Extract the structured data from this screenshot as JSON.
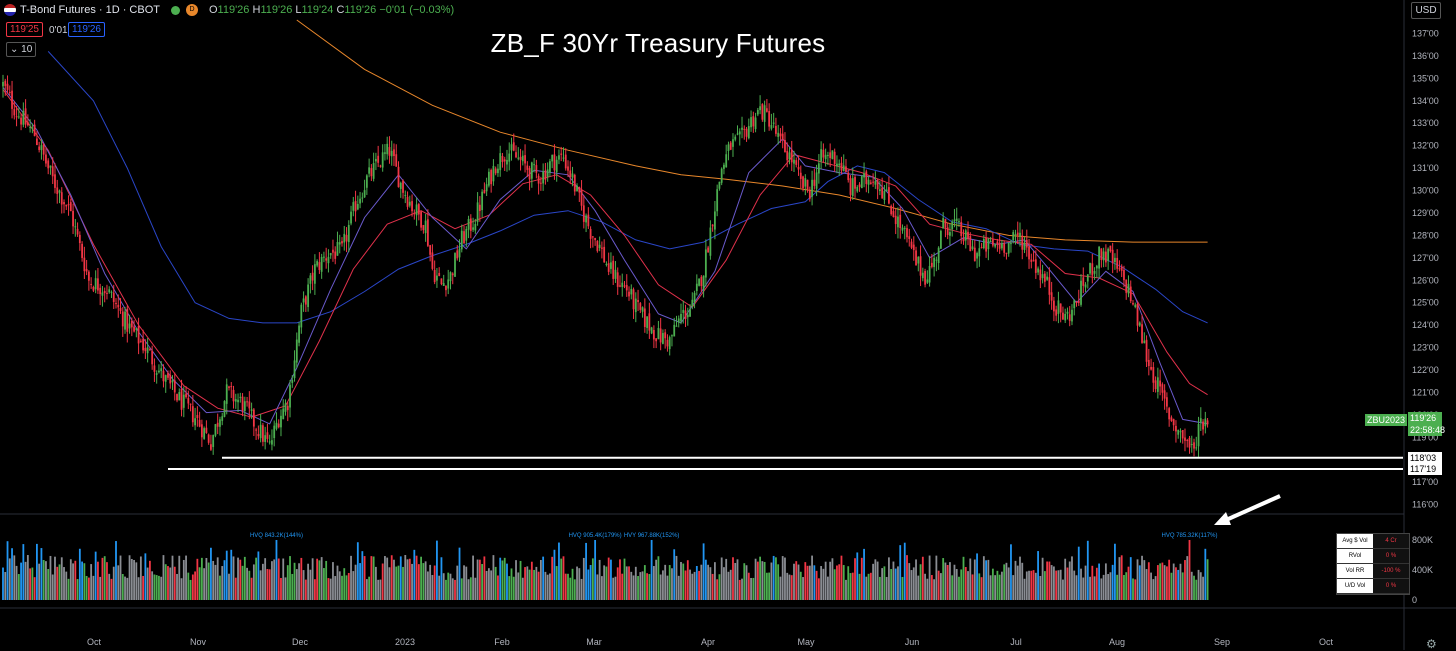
{
  "header": {
    "symbol": "T-Bond Futures · 1D · CBOT",
    "o": "119'26",
    "h": "119'26",
    "l": "119'24",
    "c": "119'26",
    "change": "−0'01 (−0.03%)",
    "bid": "119'25",
    "spread": "0'01",
    "ask": "119'26",
    "indicator_len": "10",
    "currency": "USD",
    "o_label": "O",
    "h_label": "H",
    "l_label": "L",
    "c_label": "C"
  },
  "colors": {
    "up": "#4caf50",
    "down": "#f23645",
    "vol_blue": "#2196f3",
    "vol_gray": "#8a8d93",
    "ma_fast": "#6a5acd",
    "ma_mid": "#e0314b",
    "ma_slow": "#2a46c8",
    "ma_long": "#e8872b"
  },
  "chart_data": {
    "type": "candlestick",
    "title": "ZB_F 30Yr Treasury Futures",
    "symbol_tag": "ZBU2023",
    "last_price_label": "119'26",
    "countdown": "22:58:48",
    "ylim": [
      115.85,
      137.2
    ],
    "y_ticks": [
      "137'00",
      "136'00",
      "135'00",
      "134'00",
      "133'00",
      "132'00",
      "131'00",
      "130'00",
      "129'00",
      "128'00",
      "127'00",
      "126'00",
      "125'00",
      "124'00",
      "123'00",
      "122'00",
      "121'00",
      "120'00",
      "119'00",
      "118'00",
      "117'00",
      "116'00"
    ],
    "x_ticks": [
      "Oct",
      "Nov",
      "Dec",
      "2023",
      "Feb",
      "Mar",
      "Apr",
      "May",
      "Jun",
      "Jul",
      "Aug",
      "Sep",
      "Oct"
    ],
    "support_lines": [
      {
        "value": 118.09,
        "label": "118'03"
      },
      {
        "value": 117.59,
        "label": "117'19"
      }
    ],
    "path": [
      [
        0,
        134.7
      ],
      [
        6,
        133.5
      ],
      [
        14,
        132.5
      ],
      [
        22,
        130.5
      ],
      [
        30,
        129
      ],
      [
        38,
        126
      ],
      [
        46,
        125.6
      ],
      [
        55,
        124
      ],
      [
        63,
        123
      ],
      [
        70,
        121.8
      ],
      [
        78,
        120.7
      ],
      [
        85,
        119.9
      ],
      [
        92,
        118.8
      ],
      [
        99,
        121
      ],
      [
        106,
        120.5
      ],
      [
        112,
        119.5
      ],
      [
        118,
        118.6
      ],
      [
        122,
        119.9
      ],
      [
        126,
        120.6
      ],
      [
        132,
        124.6
      ],
      [
        138,
        126.5
      ],
      [
        144,
        127.2
      ],
      [
        150,
        127.3
      ],
      [
        156,
        129.4
      ],
      [
        161,
        130.5
      ],
      [
        166,
        131.2
      ],
      [
        171,
        131.8
      ],
      [
        176,
        130.3
      ],
      [
        181,
        129.3
      ],
      [
        187,
        128.5
      ],
      [
        190,
        126.5
      ],
      [
        194,
        125.8
      ],
      [
        198,
        126.2
      ],
      [
        203,
        127.8
      ],
      [
        209,
        128.8
      ],
      [
        214,
        130.2
      ],
      [
        218,
        131.2
      ],
      [
        223,
        131.8
      ],
      [
        228,
        131.4
      ],
      [
        233,
        130.9
      ],
      [
        238,
        130.6
      ],
      [
        243,
        131.3
      ],
      [
        248,
        131.5
      ],
      [
        252,
        130.5
      ],
      [
        256,
        129.2
      ],
      [
        260,
        128.2
      ],
      [
        264,
        127.5
      ],
      [
        268,
        126.5
      ],
      [
        272,
        126
      ],
      [
        276,
        125.6
      ],
      [
        280,
        124.8
      ],
      [
        285,
        124.1
      ],
      [
        290,
        123.5
      ],
      [
        295,
        123.3
      ],
      [
        300,
        124.4
      ],
      [
        305,
        124.8
      ],
      [
        310,
        126.5
      ],
      [
        314,
        128.8
      ],
      [
        318,
        131
      ],
      [
        322,
        132
      ],
      [
        326,
        132.2
      ],
      [
        331,
        133.1
      ],
      [
        335,
        133.6
      ],
      [
        339,
        133.2
      ],
      [
        344,
        132.1
      ],
      [
        349,
        131.4
      ],
      [
        353,
        130.3
      ],
      [
        357,
        130
      ],
      [
        362,
        131.4
      ],
      [
        367,
        131.6
      ],
      [
        371,
        131.1
      ],
      [
        375,
        130.1
      ],
      [
        380,
        130.3
      ],
      [
        385,
        130.7
      ],
      [
        390,
        129.9
      ],
      [
        395,
        128.8
      ],
      [
        400,
        127.8
      ],
      [
        404,
        126.8
      ],
      [
        408,
        126.2
      ],
      [
        412,
        126.8
      ],
      [
        416,
        128.4
      ],
      [
        421,
        128.5
      ],
      [
        426,
        127.8
      ],
      [
        430,
        127.2
      ],
      [
        435,
        127.5
      ],
      [
        440,
        127.6
      ],
      [
        445,
        127.6
      ],
      [
        450,
        128
      ],
      [
        454,
        127.2
      ],
      [
        458,
        126.5
      ],
      [
        462,
        125.8
      ],
      [
        466,
        124.8
      ],
      [
        470,
        124.3
      ],
      [
        474,
        124.8
      ],
      [
        478,
        125.8
      ],
      [
        482,
        126.6
      ],
      [
        486,
        127.2
      ],
      [
        490,
        127
      ],
      [
        494,
        126.3
      ],
      [
        498,
        125.6
      ],
      [
        502,
        124.2
      ],
      [
        507,
        122.3
      ],
      [
        512,
        121
      ],
      [
        516,
        120
      ],
      [
        520,
        119.3
      ],
      [
        524,
        118.8
      ],
      [
        527,
        118.3
      ],
      [
        529,
        119.6
      ],
      [
        533,
        119.9
      ]
    ],
    "ma_fast": [
      [
        0,
        134.6
      ],
      [
        15,
        132.7
      ],
      [
        30,
        129.8
      ],
      [
        45,
        126.3
      ],
      [
        60,
        123.7
      ],
      [
        75,
        121.6
      ],
      [
        90,
        120.1
      ],
      [
        105,
        120.2
      ],
      [
        118,
        119.6
      ],
      [
        130,
        122.1
      ],
      [
        145,
        125.6
      ],
      [
        160,
        128.8
      ],
      [
        175,
        130.7
      ],
      [
        190,
        128.8
      ],
      [
        205,
        127.4
      ],
      [
        220,
        129.6
      ],
      [
        235,
        130.9
      ],
      [
        250,
        130.7
      ],
      [
        262,
        129.1
      ],
      [
        275,
        126.9
      ],
      [
        290,
        124.5
      ],
      [
        300,
        124.1
      ],
      [
        315,
        126.4
      ],
      [
        330,
        130.8
      ],
      [
        345,
        132.3
      ],
      [
        355,
        131.1
      ],
      [
        370,
        130.8
      ],
      [
        385,
        130.6
      ],
      [
        398,
        129.2
      ],
      [
        410,
        127
      ],
      [
        425,
        127.9
      ],
      [
        440,
        127.6
      ],
      [
        452,
        127.8
      ],
      [
        462,
        126.6
      ],
      [
        475,
        125
      ],
      [
        488,
        126.4
      ],
      [
        500,
        125.5
      ],
      [
        512,
        122.3
      ],
      [
        522,
        119.8
      ],
      [
        533,
        119.6
      ]
    ],
    "ma_mid": [
      [
        0,
        134.5
      ],
      [
        20,
        131.8
      ],
      [
        40,
        127.6
      ],
      [
        60,
        124
      ],
      [
        80,
        121.3
      ],
      [
        95,
        120.3
      ],
      [
        110,
        119.9
      ],
      [
        125,
        120.4
      ],
      [
        140,
        123.3
      ],
      [
        155,
        126.5
      ],
      [
        170,
        128.5
      ],
      [
        185,
        129.1
      ],
      [
        200,
        128.3
      ],
      [
        215,
        128.9
      ],
      [
        230,
        130.3
      ],
      [
        245,
        130.7
      ],
      [
        260,
        129.8
      ],
      [
        275,
        128
      ],
      [
        290,
        125.8
      ],
      [
        305,
        124.8
      ],
      [
        320,
        126.9
      ],
      [
        335,
        129.8
      ],
      [
        350,
        131.6
      ],
      [
        365,
        131.2
      ],
      [
        380,
        130.8
      ],
      [
        395,
        130.2
      ],
      [
        410,
        128.5
      ],
      [
        425,
        128.1
      ],
      [
        440,
        127.8
      ],
      [
        455,
        127.6
      ],
      [
        470,
        126.3
      ],
      [
        485,
        126.1
      ],
      [
        500,
        125.4
      ],
      [
        515,
        122.8
      ],
      [
        525,
        121.4
      ],
      [
        533,
        120.9
      ]
    ],
    "ma_slow": [
      [
        20,
        136.2
      ],
      [
        40,
        134
      ],
      [
        55,
        131
      ],
      [
        70,
        127.5
      ],
      [
        85,
        125
      ],
      [
        100,
        124.3
      ],
      [
        115,
        124.1
      ],
      [
        130,
        124.1
      ],
      [
        145,
        124.6
      ],
      [
        160,
        125.5
      ],
      [
        175,
        126.5
      ],
      [
        190,
        127.1
      ],
      [
        205,
        127.6
      ],
      [
        220,
        128.2
      ],
      [
        235,
        128.9
      ],
      [
        250,
        129.1
      ],
      [
        265,
        128.6
      ],
      [
        280,
        127.8
      ],
      [
        295,
        127.4
      ],
      [
        310,
        127.7
      ],
      [
        325,
        128.5
      ],
      [
        340,
        129.2
      ],
      [
        355,
        129.5
      ],
      [
        365,
        130.4
      ],
      [
        378,
        131.1
      ],
      [
        390,
        130.8
      ],
      [
        405,
        129.6
      ],
      [
        420,
        128.6
      ],
      [
        435,
        128.3
      ],
      [
        450,
        127.6
      ],
      [
        465,
        127.4
      ],
      [
        480,
        127.3
      ],
      [
        495,
        126.6
      ],
      [
        510,
        125.6
      ],
      [
        522,
        124.6
      ],
      [
        533,
        124.1
      ]
    ],
    "ma_long": [
      [
        130,
        137.6
      ],
      [
        160,
        135.4
      ],
      [
        190,
        133.8
      ],
      [
        220,
        132.6
      ],
      [
        250,
        131.8
      ],
      [
        280,
        131.1
      ],
      [
        300,
        130.7
      ],
      [
        320,
        130.5
      ],
      [
        345,
        130.2
      ],
      [
        370,
        129.8
      ],
      [
        395,
        129.2
      ],
      [
        420,
        128.5
      ],
      [
        445,
        128
      ],
      [
        470,
        127.8
      ],
      [
        500,
        127.7
      ],
      [
        533,
        127.7
      ]
    ]
  },
  "volume": {
    "y_ticks": [
      "800K",
      "400K",
      "0"
    ],
    "annotations": [
      {
        "bar": 121,
        "text": "HVQ 843.2K(144%)"
      },
      {
        "bar": 262,
        "text": "HVQ 905.4K(179%)"
      },
      {
        "bar": 287,
        "text": "HVY 967.88K(152%)"
      },
      {
        "bar": 525,
        "text": "HVQ 785.32K(117%)"
      }
    ],
    "table": [
      {
        "label": "Avg $ Vol",
        "value": "4 Cr"
      },
      {
        "label": "RVol",
        "value": "0 %"
      },
      {
        "label": "Vol RR",
        "value": "-100 %"
      },
      {
        "label": "U/D Vol",
        "value": "0 %"
      }
    ]
  }
}
